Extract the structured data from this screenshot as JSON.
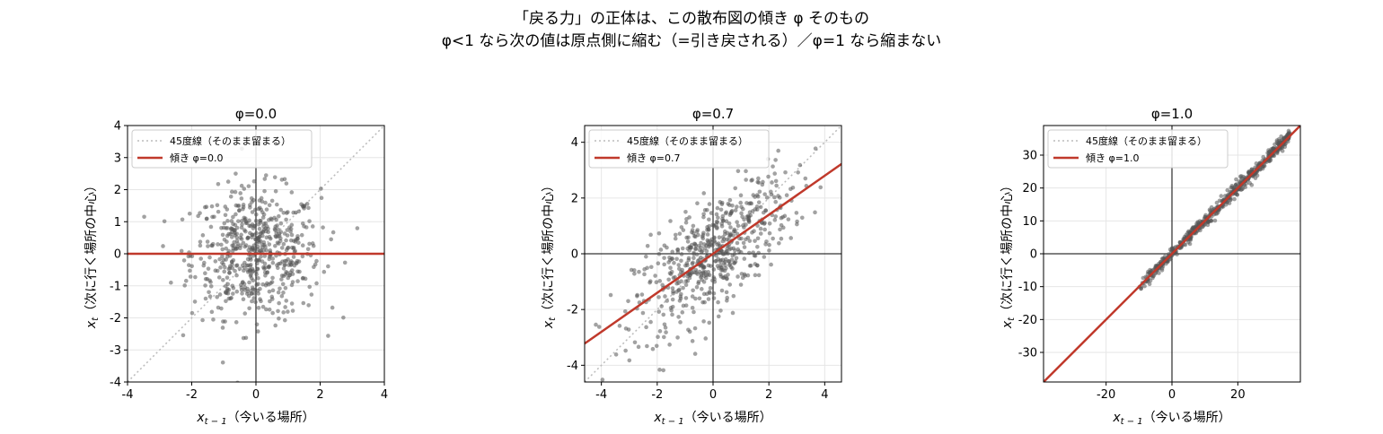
{
  "figure": {
    "title_line1": "「戻る力」の正体は、この散布図の傾き φ そのもの",
    "title_line2": "φ<1 なら次の値は原点側に縮む（=引き戻される）／φ=1 なら縮まない"
  },
  "chart_data": [
    {
      "type": "scatter",
      "title": "φ=0.0",
      "phi": 0.0,
      "xlabel_main": "x",
      "xlabel_sub": "t − 1",
      "xlabel_rest": "（今いる場所）",
      "ylabel_main": "x",
      "ylabel_sub": "t",
      "ylabel_rest": "（次に行く場所の中心）",
      "xlim": [
        -4,
        4
      ],
      "ylim": [
        -4,
        4
      ],
      "xticks": [
        -4,
        -2,
        0,
        2,
        4
      ],
      "yticks": [
        -4,
        -3,
        -2,
        -1,
        0,
        1,
        2,
        3,
        4
      ],
      "grid": true,
      "legend_position": "upper-left",
      "legend": [
        "45度線（そのまま留まる）",
        "傾き φ=0.0"
      ],
      "scatter_description": "約600点、x・y とも平均0・標準偏差約1、相関なし",
      "point_count": 600,
      "x_sd": 1.0,
      "y_sd": 1.0,
      "series": [
        {
          "kind": "scatter",
          "color": "#555555",
          "alpha": 0.55
        },
        {
          "kind": "line",
          "name": "45度線（そのまま留まる）",
          "slope": 1,
          "intercept": 0,
          "style": "dotted",
          "color": "#bbbbbb"
        },
        {
          "kind": "line",
          "name": "傾き φ=0.0",
          "slope": 0.0,
          "intercept": 0,
          "color": "#c0392b"
        }
      ]
    },
    {
      "type": "scatter",
      "title": "φ=0.7",
      "phi": 0.7,
      "xlabel_main": "x",
      "xlabel_sub": "t − 1",
      "xlabel_rest": "（今いる場所）",
      "ylabel_main": "x",
      "ylabel_sub": "t",
      "ylabel_rest": "（次に行く場所の中心）",
      "xlim": [
        -4.6,
        4.6
      ],
      "ylim": [
        -4.6,
        4.6
      ],
      "xticks": [
        -4,
        -2,
        0,
        2,
        4
      ],
      "yticks": [
        -4,
        -2,
        0,
        2,
        4
      ],
      "grid": true,
      "legend_position": "upper-left",
      "legend": [
        "45度線（そのまま留まる）",
        "傾き φ=0.7"
      ],
      "scatter_description": "約600点、x の標準偏差約1.4、y ≈ 0.7x + ノイズ",
      "point_count": 600,
      "x_sd": 1.4,
      "y_sd": 1.0,
      "series": [
        {
          "kind": "scatter",
          "color": "#555555",
          "alpha": 0.55
        },
        {
          "kind": "line",
          "name": "45度線（そのまま留まる）",
          "slope": 1,
          "intercept": 0,
          "style": "dotted",
          "color": "#bbbbbb"
        },
        {
          "kind": "line",
          "name": "傾き φ=0.7",
          "slope": 0.7,
          "intercept": 0,
          "color": "#c0392b"
        }
      ]
    },
    {
      "type": "scatter",
      "title": "φ=1.0",
      "phi": 1.0,
      "xlabel_main": "x",
      "xlabel_sub": "t − 1",
      "xlabel_rest": "（今いる場所）",
      "ylabel_main": "x",
      "ylabel_sub": "t",
      "ylabel_rest": "（次に行く場所の中心）",
      "xlim": [
        -39,
        39
      ],
      "ylim": [
        -39,
        39
      ],
      "xticks": [
        -20,
        0,
        20
      ],
      "yticks": [
        -30,
        -20,
        -10,
        0,
        10,
        20,
        30
      ],
      "grid": true,
      "legend_position": "upper-left",
      "legend": [
        "45度線（そのまま留まる）",
        "傾き φ=1.0"
      ],
      "scatter_description": "ランダムウォーク：x は約 -10〜36、y = x + ノイズ（標準偏差約1）",
      "point_count": 600,
      "x_range": [
        -10,
        36
      ],
      "y_sd": 1.0,
      "series": [
        {
          "kind": "scatter",
          "color": "#555555",
          "alpha": 0.55
        },
        {
          "kind": "line",
          "name": "45度線（そのまま留まる）",
          "slope": 1,
          "intercept": 0,
          "style": "dotted",
          "color": "#bbbbbb"
        },
        {
          "kind": "line",
          "name": "傾き φ=1.0",
          "slope": 1.0,
          "intercept": 0,
          "color": "#c0392b"
        }
      ]
    }
  ]
}
